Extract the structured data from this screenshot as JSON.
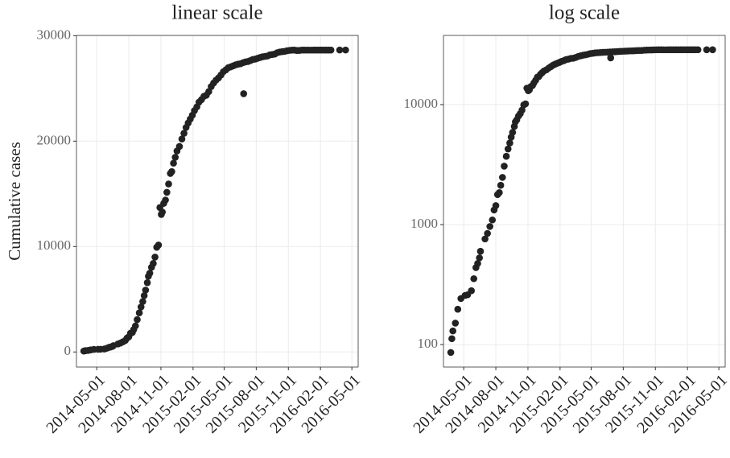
{
  "chart_data": [
    {
      "type": "scatter",
      "title": "linear scale",
      "y_label": "Cumulative cases",
      "log_y": false,
      "grid": true,
      "color": "#222222",
      "xlim": [
        "2014-03-04",
        "2016-05-19"
      ],
      "ylim": [
        -1430,
        30030
      ],
      "xticks": [
        "2014-05-01",
        "2014-08-01",
        "2014-11-01",
        "2015-02-01",
        "2015-05-01",
        "2015-08-01",
        "2015-11-01",
        "2016-02-01",
        "2016-05-01"
      ],
      "yticks": [
        0,
        10000,
        20000,
        30000
      ],
      "x": [
        "2014-03-25",
        "2014-03-28",
        "2014-03-31",
        "2014-04-07",
        "2014-04-14",
        "2014-04-23",
        "2014-05-05",
        "2014-05-12",
        "2014-05-23",
        "2014-05-30",
        "2014-06-05",
        "2014-06-10",
        "2014-06-15",
        "2014-06-18",
        "2014-07-01",
        "2014-07-08",
        "2014-07-15",
        "2014-07-22",
        "2014-07-27",
        "2014-08-01",
        "2014-08-06",
        "2014-08-11",
        "2014-08-15",
        "2014-08-20",
        "2014-08-25",
        "2014-08-31",
        "2014-09-05",
        "2014-09-10",
        "2014-09-14",
        "2014-09-18",
        "2014-09-23",
        "2014-09-26",
        "2014-09-30",
        "2014-10-05",
        "2014-10-10",
        "2014-10-15",
        "2014-10-20",
        "2014-10-25",
        "2014-10-29",
        "2014-11-02",
        "2014-11-05",
        "2014-11-09",
        "2014-11-14",
        "2014-11-18",
        "2014-11-23",
        "2014-11-28",
        "2014-12-02",
        "2014-12-07",
        "2014-12-12",
        "2014-12-17",
        "2014-12-24",
        "2014-12-31",
        "2015-01-06",
        "2015-01-12",
        "2015-01-18",
        "2015-01-24",
        "2015-01-30",
        "2015-02-05",
        "2015-02-12",
        "2015-02-18",
        "2015-02-25",
        "2015-03-04",
        "2015-03-11",
        "2015-03-18",
        "2015-03-25",
        "2015-04-01",
        "2015-04-08",
        "2015-04-15",
        "2015-04-22",
        "2015-04-29",
        "2015-05-06",
        "2015-05-13",
        "2015-05-20",
        "2015-05-27",
        "2015-06-03",
        "2015-06-10",
        "2015-06-17",
        "2015-06-24",
        "2015-06-26",
        "2015-07-01",
        "2015-07-08",
        "2015-07-15",
        "2015-07-22",
        "2015-07-29",
        "2015-08-05",
        "2015-08-12",
        "2015-08-19",
        "2015-08-26",
        "2015-09-02",
        "2015-09-09",
        "2015-09-16",
        "2015-09-23",
        "2015-09-30",
        "2015-10-07",
        "2015-10-14",
        "2015-10-21",
        "2015-10-28",
        "2015-11-04",
        "2015-11-11",
        "2015-11-18",
        "2015-11-25",
        "2015-12-02",
        "2015-12-09",
        "2015-12-16",
        "2015-12-23",
        "2015-12-30",
        "2016-01-06",
        "2016-01-13",
        "2016-01-20",
        "2016-01-27",
        "2016-02-03",
        "2016-02-10",
        "2016-02-17",
        "2016-02-24",
        "2016-03-02",
        "2016-03-27",
        "2016-04-13"
      ],
      "values": [
        86,
        112,
        130,
        151,
        197,
        242,
        257,
        260,
        281,
        354,
        438,
        474,
        528,
        599,
        759,
        844,
        964,
        1093,
        1323,
        1440,
        1779,
        1848,
        2127,
        2473,
        3069,
        3707,
        4269,
        4784,
        5347,
        5864,
        6574,
        7178,
        7470,
        8033,
        8399,
        8997,
        9936,
        10141,
        13703,
        13042,
        13268,
        14098,
        14413,
        15145,
        15935,
        16933,
        17111,
        17908,
        18464,
        19065,
        19497,
        20206,
        20747,
        21296,
        21724,
        22092,
        22460,
        22894,
        23253,
        23694,
        23934,
        24247,
        24350,
        24701,
        25178,
        25515,
        25791,
        26000,
        26277,
        26593,
        26759,
        26969,
        27049,
        27145,
        27237,
        27305,
        27341,
        27443,
        24500,
        27514,
        27550,
        27642,
        27741,
        27784,
        27862,
        27935,
        28005,
        28041,
        28073,
        28183,
        28220,
        28256,
        28388,
        28454,
        28490,
        28512,
        28575,
        28607,
        28635,
        28640,
        28601,
        28601,
        28637,
        28640,
        28637,
        28637,
        28637,
        28638,
        28638,
        28639,
        28639,
        28639,
        28639,
        28639,
        28639,
        28646,
        28646
      ]
    },
    {
      "type": "scatter",
      "title": "log scale",
      "log_y": true,
      "grid": true,
      "color": "#222222",
      "xlim": [
        "2014-03-04",
        "2016-05-19"
      ],
      "ylim": [
        65,
        37700
      ],
      "xticks": [
        "2014-05-01",
        "2014-08-01",
        "2014-11-01",
        "2015-02-01",
        "2015-05-01",
        "2015-08-01",
        "2015-11-01",
        "2016-02-01",
        "2016-05-01"
      ],
      "yticks": [
        100,
        1000,
        10000
      ],
      "x": [
        "2014-03-25",
        "2014-03-28",
        "2014-03-31",
        "2014-04-07",
        "2014-04-14",
        "2014-04-23",
        "2014-05-05",
        "2014-05-12",
        "2014-05-23",
        "2014-05-30",
        "2014-06-05",
        "2014-06-10",
        "2014-06-15",
        "2014-06-18",
        "2014-07-01",
        "2014-07-08",
        "2014-07-15",
        "2014-07-22",
        "2014-07-27",
        "2014-08-01",
        "2014-08-06",
        "2014-08-11",
        "2014-08-15",
        "2014-08-20",
        "2014-08-25",
        "2014-08-31",
        "2014-09-05",
        "2014-09-10",
        "2014-09-14",
        "2014-09-18",
        "2014-09-23",
        "2014-09-26",
        "2014-09-30",
        "2014-10-05",
        "2014-10-10",
        "2014-10-15",
        "2014-10-20",
        "2014-10-25",
        "2014-10-29",
        "2014-11-02",
        "2014-11-05",
        "2014-11-09",
        "2014-11-14",
        "2014-11-18",
        "2014-11-23",
        "2014-11-28",
        "2014-12-02",
        "2014-12-07",
        "2014-12-12",
        "2014-12-17",
        "2014-12-24",
        "2014-12-31",
        "2015-01-06",
        "2015-01-12",
        "2015-01-18",
        "2015-01-24",
        "2015-01-30",
        "2015-02-05",
        "2015-02-12",
        "2015-02-18",
        "2015-02-25",
        "2015-03-04",
        "2015-03-11",
        "2015-03-18",
        "2015-03-25",
        "2015-04-01",
        "2015-04-08",
        "2015-04-15",
        "2015-04-22",
        "2015-04-29",
        "2015-05-06",
        "2015-05-13",
        "2015-05-20",
        "2015-05-27",
        "2015-06-03",
        "2015-06-10",
        "2015-06-17",
        "2015-06-24",
        "2015-06-26",
        "2015-07-01",
        "2015-07-08",
        "2015-07-15",
        "2015-07-22",
        "2015-07-29",
        "2015-08-05",
        "2015-08-12",
        "2015-08-19",
        "2015-08-26",
        "2015-09-02",
        "2015-09-09",
        "2015-09-16",
        "2015-09-23",
        "2015-09-30",
        "2015-10-07",
        "2015-10-14",
        "2015-10-21",
        "2015-10-28",
        "2015-11-04",
        "2015-11-11",
        "2015-11-18",
        "2015-11-25",
        "2015-12-02",
        "2015-12-09",
        "2015-12-16",
        "2015-12-23",
        "2015-12-30",
        "2016-01-06",
        "2016-01-13",
        "2016-01-20",
        "2016-01-27",
        "2016-02-03",
        "2016-02-10",
        "2016-02-17",
        "2016-02-24",
        "2016-03-02",
        "2016-03-27",
        "2016-04-13"
      ],
      "values": [
        86,
        112,
        130,
        151,
        197,
        242,
        257,
        260,
        281,
        354,
        438,
        474,
        528,
        599,
        759,
        844,
        964,
        1093,
        1323,
        1440,
        1779,
        1848,
        2127,
        2473,
        3069,
        3707,
        4269,
        4784,
        5347,
        5864,
        6574,
        7178,
        7470,
        8033,
        8399,
        8997,
        9936,
        10141,
        13703,
        13042,
        13268,
        14098,
        14413,
        15145,
        15935,
        16933,
        17111,
        17908,
        18464,
        19065,
        19497,
        20206,
        20747,
        21296,
        21724,
        22092,
        22460,
        22894,
        23253,
        23694,
        23934,
        24247,
        24350,
        24701,
        25178,
        25515,
        25791,
        26000,
        26277,
        26593,
        26759,
        26969,
        27049,
        27145,
        27237,
        27305,
        27341,
        27443,
        24500,
        27514,
        27550,
        27642,
        27741,
        27784,
        27862,
        27935,
        28005,
        28041,
        28073,
        28183,
        28220,
        28256,
        28388,
        28454,
        28490,
        28512,
        28575,
        28607,
        28635,
        28640,
        28601,
        28601,
        28637,
        28640,
        28637,
        28637,
        28637,
        28638,
        28638,
        28639,
        28639,
        28639,
        28639,
        28639,
        28639,
        28646,
        28646
      ]
    }
  ]
}
